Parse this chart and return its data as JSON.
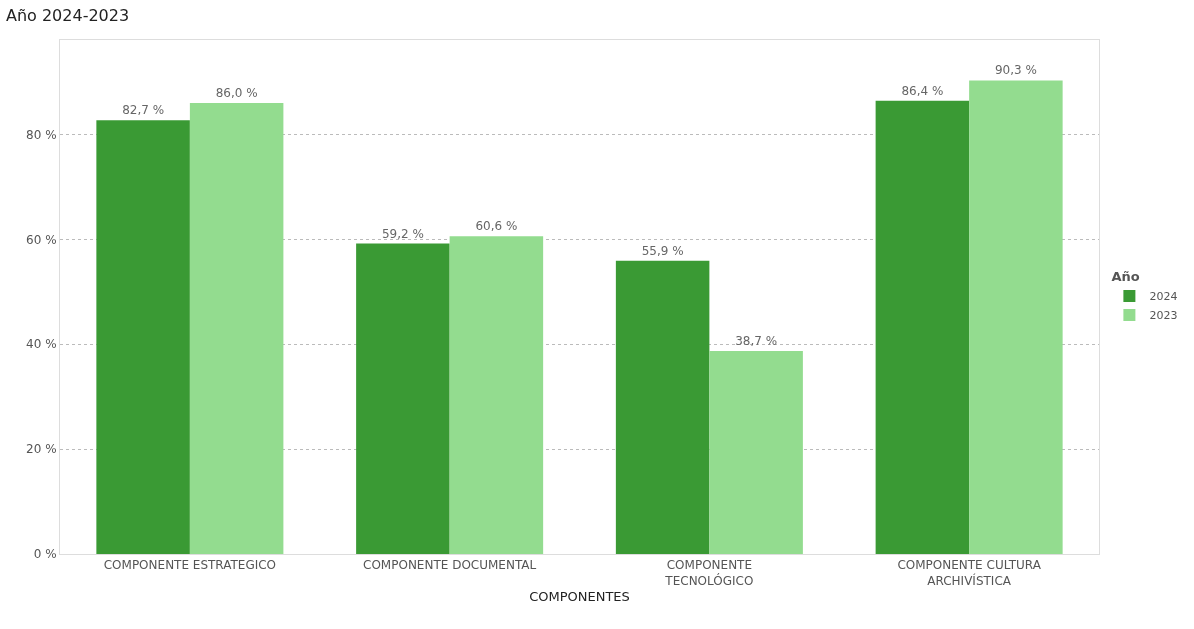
{
  "chart_data": {
    "type": "bar",
    "title": "Año 2024-2023",
    "xlabel": "COMPONENTES",
    "legend_title": "Año",
    "categories": [
      "COMPONENTE ESTRATEGICO",
      "COMPONENTE DOCUMENTAL",
      "COMPONENTE\nTECNOLÓGICO",
      "COMPONENTE CULTURA\nARCHIVÍSTICA"
    ],
    "series": [
      {
        "name": "2024",
        "color": "#3a9a34",
        "values": [
          82.7,
          59.2,
          55.9,
          86.4
        ],
        "value_labels": [
          "82,7 %",
          "59,2 %",
          "55,9 %",
          "86,4 %"
        ]
      },
      {
        "name": "2023",
        "color": "#93dc8f",
        "values": [
          86.0,
          60.6,
          38.7,
          90.3
        ],
        "value_labels": [
          "86,0 %",
          "60,6 %",
          "38,7 %",
          "90,3 %"
        ]
      }
    ],
    "ylim": [
      0,
      98
    ],
    "yticks": [
      {
        "value": 0,
        "label": "0 %"
      },
      {
        "value": 20,
        "label": "20 %"
      },
      {
        "value": 40,
        "label": "40 %"
      },
      {
        "value": 60,
        "label": "60 %"
      },
      {
        "value": 80,
        "label": "80 %"
      }
    ],
    "grid": "y",
    "legend": "right"
  }
}
